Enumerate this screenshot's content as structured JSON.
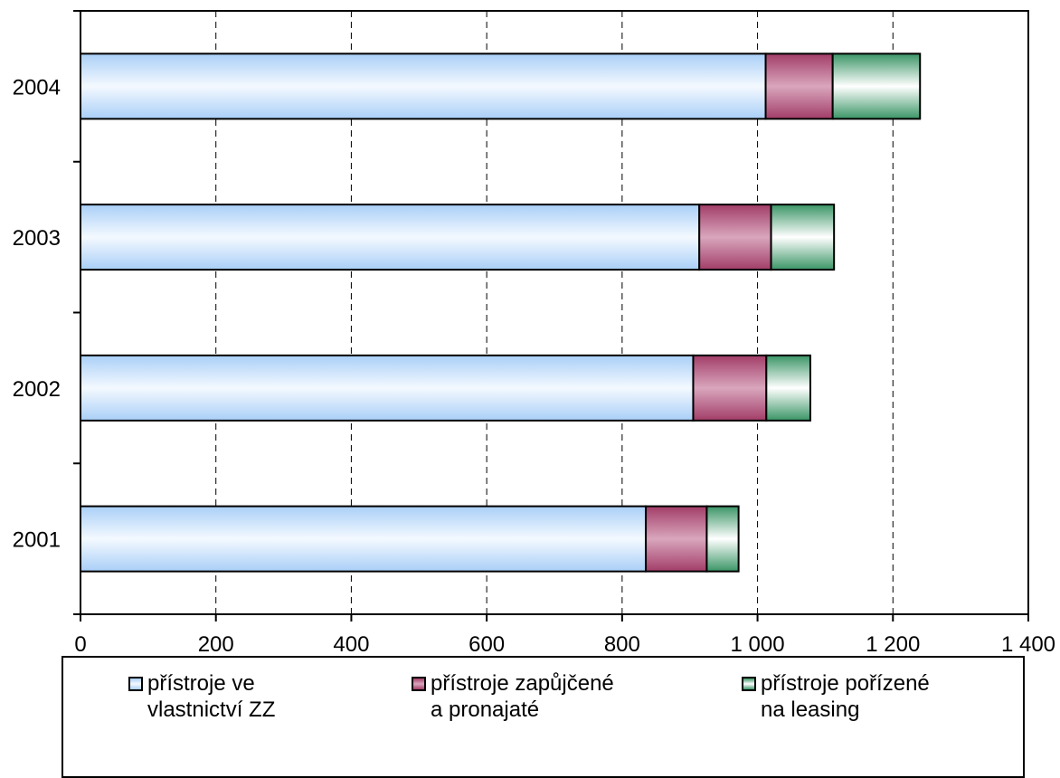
{
  "chart_data": {
    "type": "bar",
    "orientation": "horizontal",
    "stacked": true,
    "categories": [
      "2001",
      "2002",
      "2003",
      "2004"
    ],
    "series": [
      {
        "name": "přístroje ve vlastnictví ZZ",
        "values": [
          835,
          905,
          914,
          1012
        ],
        "color": "#c9e3ff"
      },
      {
        "name": "přístroje zapůjčené a pronajaté",
        "values": [
          90,
          108,
          106,
          99
        ],
        "color": "#b03a6c"
      },
      {
        "name": "přístroje pořízené na leasing",
        "values": [
          47,
          65,
          93,
          129
        ],
        "color": "#2e8a5a"
      }
    ],
    "xlim": [
      0,
      1400
    ],
    "xticks": [
      0,
      200,
      400,
      600,
      800,
      1000,
      1200,
      1400
    ],
    "xtick_labels": [
      "0",
      "200",
      "400",
      "600",
      "800",
      "1 000",
      "1 200",
      "1 400"
    ],
    "grid": "vertical dashed",
    "legend_position": "bottom"
  },
  "legend": {
    "items": [
      {
        "line1": "přístroje ve",
        "line2": "vlastnictví ZZ",
        "color": "#c9e3ff"
      },
      {
        "line1": "přístroje zapůjčené",
        "line2": "a pronajaté",
        "color": "#b03a6c"
      },
      {
        "line1": "přístroje pořízené",
        "line2": "na leasing",
        "color": "#2e8a5a"
      }
    ]
  }
}
